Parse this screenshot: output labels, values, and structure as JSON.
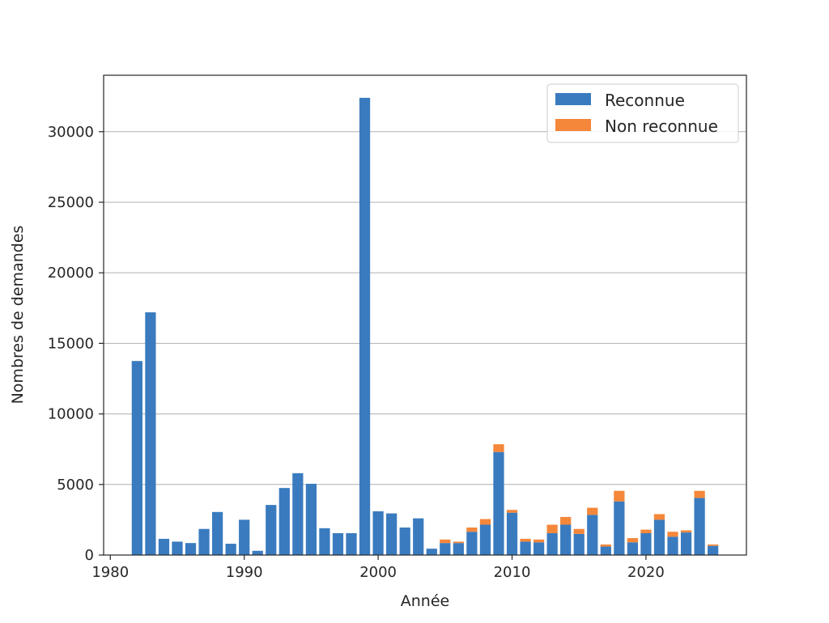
{
  "chart_data": {
    "type": "bar",
    "stacked": true,
    "xlabel": "Année",
    "ylabel": "Nombres de demandes",
    "xlim": [
      1979.5,
      2027.5
    ],
    "ylim": [
      0,
      34000
    ],
    "x_ticks": [
      1980,
      1990,
      2000,
      2010,
      2020
    ],
    "y_ticks": [
      0,
      5000,
      10000,
      15000,
      20000,
      25000,
      30000
    ],
    "grid": "horizontal",
    "legend_position": "top-right",
    "x": [
      1982,
      1983,
      1984,
      1985,
      1986,
      1987,
      1988,
      1989,
      1990,
      1991,
      1992,
      1993,
      1994,
      1995,
      1996,
      1997,
      1998,
      1999,
      2000,
      2001,
      2002,
      2003,
      2004,
      2005,
      2006,
      2007,
      2008,
      2009,
      2010,
      2011,
      2012,
      2013,
      2014,
      2015,
      2016,
      2017,
      2018,
      2019,
      2020,
      2021,
      2022,
      2023,
      2024,
      2025
    ],
    "series": [
      {
        "name": "Reconnue",
        "color": "#3a7bbf",
        "values": [
          13750,
          17200,
          1150,
          950,
          850,
          1850,
          3050,
          800,
          2500,
          300,
          3550,
          4750,
          5800,
          5050,
          1900,
          1550,
          1550,
          32400,
          3100,
          2950,
          1950,
          2600,
          450,
          850,
          850,
          1650,
          2150,
          7300,
          3000,
          950,
          900,
          1550,
          2150,
          1500,
          2850,
          600,
          3800,
          900,
          1550,
          2500,
          1300,
          1600,
          4050,
          650
        ]
      },
      {
        "name": "Non reconnue",
        "color": "#f5873a",
        "values": [
          0,
          0,
          0,
          0,
          0,
          0,
          0,
          0,
          0,
          0,
          0,
          0,
          0,
          0,
          0,
          0,
          0,
          0,
          0,
          0,
          0,
          0,
          0,
          250,
          100,
          300,
          400,
          550,
          200,
          200,
          200,
          600,
          550,
          350,
          500,
          150,
          750,
          300,
          250,
          400,
          350,
          150,
          500,
          100
        ]
      }
    ]
  }
}
